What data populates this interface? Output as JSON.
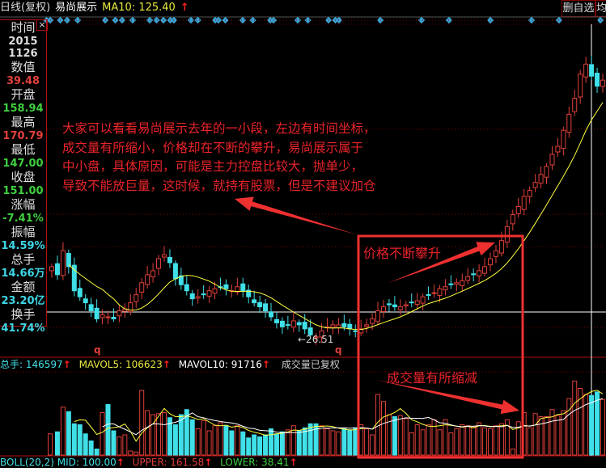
{
  "header": {
    "period": "日线(复权)",
    "stock_name": "易尚展示",
    "ma_label": "MA10: 125.40",
    "arrow": "↑",
    "delete_watchlist": "删自选",
    "more": "均"
  },
  "info_panel": {
    "close_label": "×",
    "rows": [
      {
        "label": "时间",
        "value": "2015",
        "value2": "1126",
        "color": "#dddddd"
      },
      {
        "label": "数值",
        "value": "39.48",
        "color": "#e0403a"
      },
      {
        "label": "开盘",
        "value": "158.94",
        "color": "#3ecf3e"
      },
      {
        "label": "最高",
        "value": "170.79",
        "color": "#e0403a"
      },
      {
        "label": "最低",
        "value": "147.00",
        "color": "#3ecf3e"
      },
      {
        "label": "收盘",
        "value": "151.00",
        "color": "#3ecf3e"
      },
      {
        "label": "涨幅",
        "value": "-7.41%",
        "color": "#3ecf3e"
      },
      {
        "label": "振幅",
        "value": "14.59%",
        "color": "#3fd6e6"
      },
      {
        "label": "总手",
        "value": "14.66万",
        "color": "#3fd6e6"
      },
      {
        "label": "金额",
        "value": "23.20亿",
        "color": "#3fd6e6"
      },
      {
        "label": "换手",
        "value": "41.74%",
        "color": "#3fd6e6"
      }
    ]
  },
  "annotation": {
    "lines": [
      "大家可以看看易尚展示去年的一小段，左边有时间坐标，",
      "成交量有所缩小，价格却在不断的攀升，易尚展示属于",
      "中小盘，具体原因，可能是主力控盘比较大，抛单少，",
      "导致不能放巨量，这时候，就持有股票，但是不建议加仓"
    ]
  },
  "notes": {
    "price_rise": "价格不断攀升",
    "volume_shrink": "成交量有所缩减"
  },
  "price_chart": {
    "low_label": "26.51",
    "marker_label": "q",
    "closes": [
      62,
      58,
      70,
      62,
      50,
      47,
      44,
      40,
      36,
      38,
      37,
      36,
      40,
      41,
      44,
      48,
      54,
      58,
      60,
      66,
      68,
      64,
      56,
      53,
      50,
      46,
      47,
      48,
      50,
      51,
      52,
      51,
      50,
      52,
      50,
      47,
      44,
      42,
      40,
      37,
      34,
      32,
      33,
      35,
      33,
      31,
      28,
      27,
      30,
      32,
      33,
      33,
      32,
      31,
      30,
      31,
      33,
      36,
      40,
      42,
      43,
      42,
      42,
      43,
      44,
      45,
      47,
      48,
      49,
      51,
      52,
      53,
      54,
      55,
      57,
      58,
      60,
      62,
      66,
      70,
      75,
      82,
      88,
      92,
      97,
      100,
      104,
      108,
      112,
      118,
      122,
      130,
      138,
      146,
      158,
      163,
      157,
      152,
      155
    ]
  },
  "volume_chart": {
    "total": "总手: 146597",
    "mavol5": "MAVOL5: 106623",
    "mavol10": "MAVOL10: 91716",
    "note": "成交量已复权",
    "arrow": "↑",
    "volumes": [
      42000,
      46000,
      95000,
      86000,
      62000,
      60000,
      42000,
      28000,
      12000,
      84000,
      100000,
      48000,
      36000,
      40000,
      8000,
      6000,
      128000,
      88000,
      80000,
      82000,
      84000,
      74000,
      60000,
      80000,
      90000,
      70000,
      52000,
      68000,
      48000,
      58000,
      64000,
      58000,
      48000,
      58000,
      46000,
      34000,
      40000,
      36000,
      40000,
      52000,
      42000,
      46000,
      50000,
      58000,
      48000,
      54000,
      62000,
      62000,
      58000,
      52000,
      48000,
      46000,
      52000,
      50000,
      54000,
      60000,
      52000,
      40000,
      120000,
      106000,
      80000,
      76000,
      78000,
      72000,
      44000,
      60000,
      50000,
      60000,
      70000,
      50000,
      70000,
      44000,
      52000,
      60000,
      58000,
      56000,
      64000,
      54000,
      52000,
      58000,
      62000,
      70000,
      12000,
      66000,
      84000,
      54000,
      82000,
      76000,
      76000,
      90000,
      78000,
      88000,
      112000,
      146597,
      132000,
      120000,
      118000,
      125000,
      110000
    ]
  },
  "boll": {
    "mid": "BOLL(20,2) MID: 100.00",
    "upper": "UPPER: 161.58",
    "lower": "LOWER: 38.41",
    "arrow": "↑"
  },
  "colors": {
    "up": "#e0403a",
    "down": "#40e0e8",
    "ma": "#ffff40",
    "grid": "#7a0000",
    "frame": "#b01010",
    "highlight": "#ee3030"
  }
}
